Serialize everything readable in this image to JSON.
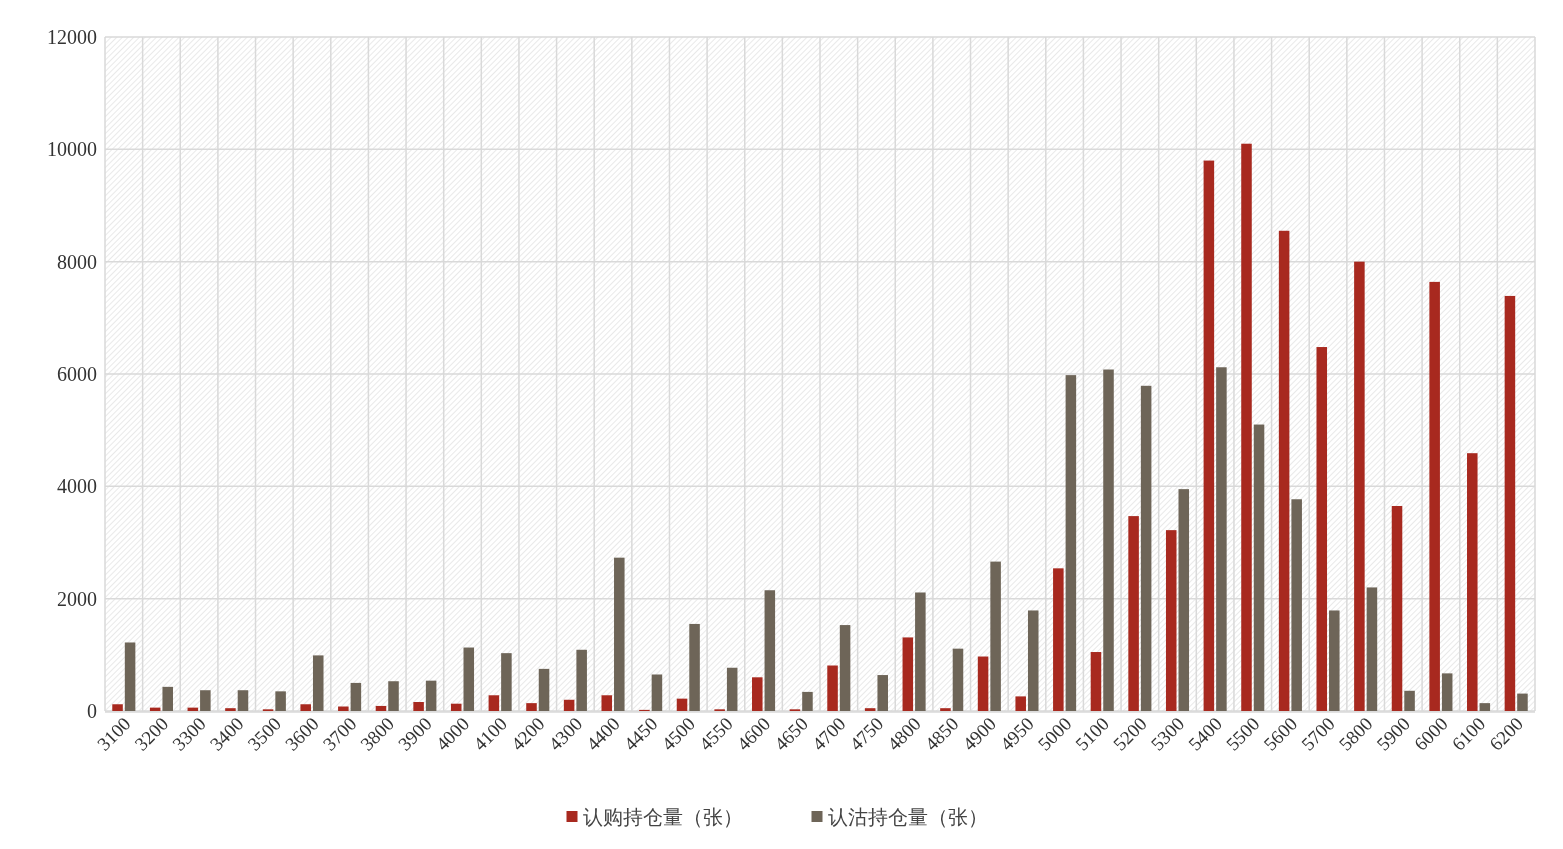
{
  "chart_data": {
    "type": "bar",
    "categories": [
      "3100",
      "3200",
      "3300",
      "3400",
      "3500",
      "3600",
      "3700",
      "3800",
      "3900",
      "4000",
      "4100",
      "4200",
      "4300",
      "4400",
      "4450",
      "4500",
      "4550",
      "4600",
      "4650",
      "4700",
      "4750",
      "4800",
      "4850",
      "4900",
      "4950",
      "5000",
      "5100",
      "5200",
      "5300",
      "5400",
      "5500",
      "5600",
      "5700",
      "5800",
      "5900",
      "6000",
      "6100",
      "6200"
    ],
    "series": [
      {
        "name": "认购持仓量（张）",
        "color": "#a8291f",
        "values": [
          120,
          60,
          60,
          50,
          30,
          120,
          80,
          90,
          160,
          130,
          280,
          140,
          200,
          280,
          20,
          220,
          30,
          600,
          30,
          810,
          50,
          1310,
          50,
          970,
          260,
          2540,
          1050,
          3470,
          3220,
          9800,
          10100,
          8550,
          6480,
          8000,
          3650,
          7640,
          4590,
          7390
        ]
      },
      {
        "name": "认沽持仓量（张）",
        "color": "#6e6558",
        "values": [
          1220,
          430,
          370,
          370,
          350,
          990,
          500,
          530,
          540,
          1130,
          1030,
          750,
          1090,
          2730,
          650,
          1550,
          770,
          2150,
          340,
          1530,
          640,
          2110,
          1110,
          2660,
          1790,
          5980,
          6080,
          5790,
          3950,
          6120,
          5100,
          3770,
          1790,
          2200,
          360,
          670,
          140,
          310
        ]
      }
    ],
    "ylim": [
      0,
      12000
    ],
    "yticks": [
      0,
      2000,
      4000,
      6000,
      8000,
      10000,
      12000
    ],
    "grid": true,
    "legend": "bottom"
  }
}
